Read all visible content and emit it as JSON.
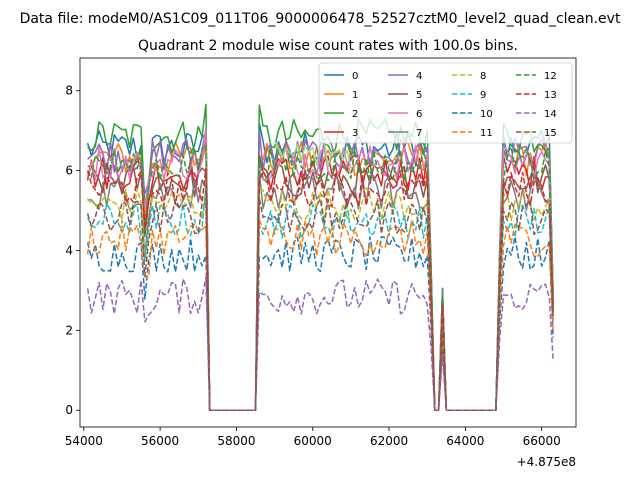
{
  "figure": {
    "suptitle": "Data file: modeM0/AS1C09_011T06_9000006478_52527cztM0_level2_quad_clean.evt"
  },
  "chart_data": {
    "type": "line",
    "title": "Quadrant 2 module wise count rates with 100.0s bins.",
    "xlabel": "",
    "ylabel": "",
    "x_offset_label": "+4.875e8",
    "xlim": [
      53900,
      66900
    ],
    "ylim": [
      -0.42,
      8.82
    ],
    "xticks": [
      54000,
      56000,
      58000,
      60000,
      62000,
      64000,
      66000
    ],
    "yticks": [
      0,
      2,
      4,
      6,
      8
    ],
    "grid": false,
    "legend": {
      "placement": "top-right",
      "columns": 4
    },
    "segments": [
      {
        "x0": 54100,
        "x1": 57100,
        "active": true
      },
      {
        "x0": 57200,
        "x1": 57300,
        "active": "ramp"
      },
      {
        "x0": 57300,
        "x1": 58500,
        "active": false
      },
      {
        "x0": 58600,
        "x1": 63100,
        "active": true
      },
      {
        "x0": 63200,
        "x1": 63300,
        "active": false
      },
      {
        "x0": 63400,
        "x1": 63400,
        "active": "spike"
      },
      {
        "x0": 63500,
        "x1": 64800,
        "active": false
      },
      {
        "x0": 64900,
        "x1": 66300,
        "active": true
      }
    ],
    "dip_at_x": 55600,
    "series": [
      {
        "name": "0",
        "color": "#1f77b4",
        "dash": "solid",
        "mean": 6.55
      },
      {
        "name": "1",
        "color": "#ff7f0e",
        "dash": "solid",
        "mean": 6.3
      },
      {
        "name": "2",
        "color": "#2ca02c",
        "dash": "solid",
        "mean": 6.85
      },
      {
        "name": "3",
        "color": "#d62728",
        "dash": "solid",
        "mean": 5.95
      },
      {
        "name": "4",
        "color": "#9467bd",
        "dash": "solid",
        "mean": 6.4
      },
      {
        "name": "5",
        "color": "#8c564b",
        "dash": "solid",
        "mean": 5.75
      },
      {
        "name": "6",
        "color": "#e377c2",
        "dash": "solid",
        "mean": 6.2
      },
      {
        "name": "7",
        "color": "#7f7f7f",
        "dash": "solid",
        "mean": 5.45
      },
      {
        "name": "8",
        "color": "#bcbd22",
        "dash": "dashed",
        "mean": 5.15
      },
      {
        "name": "9",
        "color": "#17becf",
        "dash": "dashed",
        "mean": 4.75
      },
      {
        "name": "10",
        "color": "#1f77b4",
        "dash": "dashed",
        "mean": 3.9
      },
      {
        "name": "11",
        "color": "#ff7f0e",
        "dash": "dashed",
        "mean": 4.3
      },
      {
        "name": "12",
        "color": "#2ca02c",
        "dash": "dashed",
        "mean": 6.15
      },
      {
        "name": "13",
        "color": "#d62728",
        "dash": "dashed",
        "mean": 5.55
      },
      {
        "name": "14",
        "color": "#9467bd",
        "dash": "dashed",
        "mean": 2.85
      },
      {
        "name": "15",
        "color": "#8c564b",
        "dash": "dashed",
        "mean": 4.85
      }
    ],
    "extra_series": [
      {
        "color": "#98df8a",
        "dash": "solid",
        "mean": 6.4,
        "x_from": 59000,
        "x_to": 61000
      }
    ]
  }
}
